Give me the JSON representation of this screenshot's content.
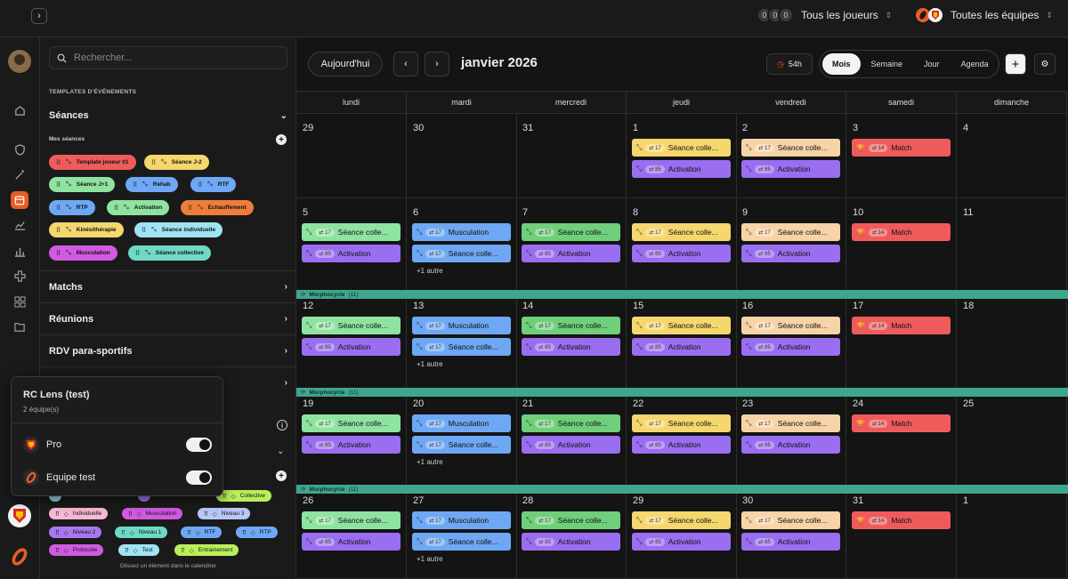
{
  "topbar": {
    "players_label": "Tous les joueurs",
    "players_avatars": [
      "0",
      "0",
      "0"
    ],
    "teams_label": "Toutes les équipes"
  },
  "panel": {
    "search_placeholder": "Rechercher...",
    "templates_caption": "TEMPLATES D'ÉVÉNEMENTS",
    "seances_title": "Séances",
    "mes_seances": "Mes séances",
    "templates": [
      {
        "label": "Template joueur 01",
        "color": "#ef5b5b"
      },
      {
        "label": "Séance J-2",
        "color": "#f5d76e"
      },
      {
        "label": "Séance J+1",
        "color": "#8fe3a0"
      },
      {
        "label": "Rehab",
        "color": "#6ea8f5"
      },
      {
        "label": "RTF",
        "color": "#6ea8f5"
      },
      {
        "label": "RTP",
        "color": "#6ea8f5"
      },
      {
        "label": "Activation",
        "color": "#8fe3a0"
      },
      {
        "label": "Echauffement",
        "color": "#ee7d3b"
      },
      {
        "label": "Kinésithérapie",
        "color": "#f5d76e"
      },
      {
        "label": "Séance individuelle",
        "color": "#9fe3f5"
      },
      {
        "label": "Musculation",
        "color": "#d05ae0"
      },
      {
        "label": "Séance collective",
        "color": "#6fd9c5"
      }
    ],
    "sections": [
      "Matchs",
      "Réunions",
      "RDV para-sportifs"
    ],
    "tags": [
      {
        "label": "Collective",
        "color": "#b8ef5a"
      },
      {
        "label": "Individuelle",
        "color": "#f7b9d3"
      },
      {
        "label": "Musculation",
        "color": "#d05ae0"
      },
      {
        "label": "Niveau 3",
        "color": "#b9c7f7"
      },
      {
        "label": "Niveau 2",
        "color": "#a877ee"
      },
      {
        "label": "Niveau 1",
        "color": "#6fd9c5"
      },
      {
        "label": "RTF",
        "color": "#6ea8f5"
      },
      {
        "label": "RTP",
        "color": "#6ea8f5"
      },
      {
        "label": "Protocole",
        "color": "#d05ae0"
      },
      {
        "label": "Test",
        "color": "#9fe3f5"
      },
      {
        "label": "Entrainement",
        "color": "#b8ef5a"
      }
    ],
    "hint": "Glissez un élément dans le calendrier"
  },
  "popup": {
    "title": "RC Lens (test)",
    "subtitle": "2 équipe(s)",
    "teams": [
      {
        "label": "Pro"
      },
      {
        "label": "Equipe test"
      }
    ]
  },
  "calendar": {
    "today_label": "Aujourd'hui",
    "month_title": "janvier 2026",
    "duration": "54h",
    "views": [
      "Mois",
      "Semaine",
      "Jour",
      "Agenda"
    ],
    "weekdays": [
      "lundi",
      "mardi",
      "mercredi",
      "jeudi",
      "vendredi",
      "samedi",
      "dimanche"
    ],
    "more_label": "+1 autre",
    "band_label": "Morphocycle",
    "band_count": "(11)",
    "weeks": [
      [
        "29",
        "30",
        "31",
        "1",
        "2",
        "3",
        "4"
      ],
      [
        "5",
        "6",
        "7",
        "8",
        "9",
        "10",
        "11"
      ],
      [
        "12",
        "13",
        "14",
        "15",
        "16",
        "17",
        "18"
      ],
      [
        "19",
        "20",
        "21",
        "22",
        "23",
        "24",
        "25"
      ],
      [
        "26",
        "27",
        "28",
        "29",
        "30",
        "31",
        "1"
      ]
    ],
    "event_labels": {
      "collective": "Séance colle...",
      "activation": "Activation",
      "musculation": "Musculation",
      "match": "Match"
    },
    "event_counts": {
      "c17": "17",
      "c85": "85",
      "c14": "14"
    }
  }
}
